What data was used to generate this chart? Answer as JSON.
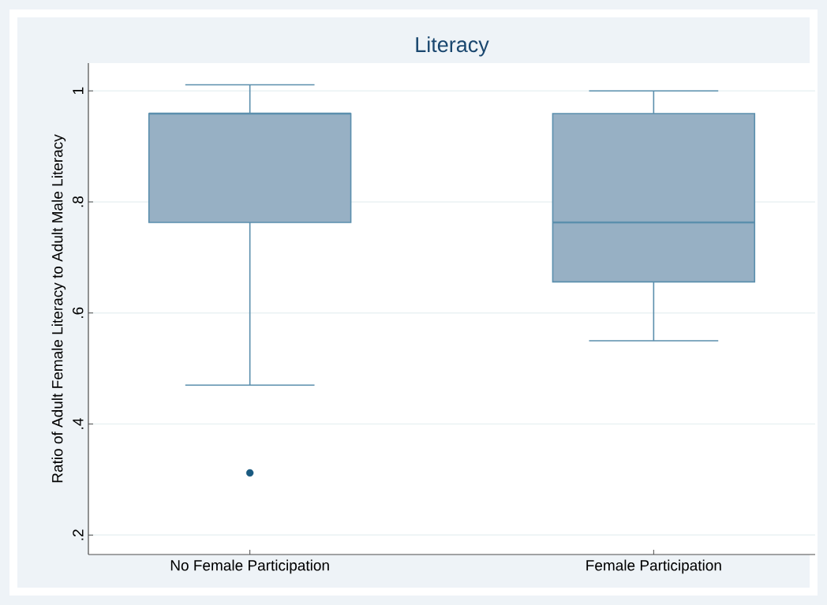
{
  "chart_data": {
    "type": "box",
    "title": "Literacy",
    "ylabel": "Ratio of Adult Female Literacy to Adult Male Literacy",
    "categories": [
      "No Female Participation",
      "Female Participation"
    ],
    "boxes": [
      {
        "low": 0.47,
        "q1": 0.763,
        "median": 0.959,
        "q3": 0.959,
        "high": 1.011,
        "outliers": [
          0.312
        ]
      },
      {
        "low": 0.55,
        "q1": 0.656,
        "median": 0.763,
        "q3": 0.959,
        "high": 1.0
      }
    ],
    "color": "#97b0c4",
    "ylim": [
      0.165,
      1.05
    ],
    "yticks": [
      {
        "value": 0.2,
        "label": ".2"
      },
      {
        "value": 0.4,
        "label": ".4"
      },
      {
        "value": 0.6,
        "label": ".6"
      },
      {
        "value": 0.8,
        "label": ".8"
      },
      1
    ],
    "grid": "y",
    "marker": "circle"
  }
}
